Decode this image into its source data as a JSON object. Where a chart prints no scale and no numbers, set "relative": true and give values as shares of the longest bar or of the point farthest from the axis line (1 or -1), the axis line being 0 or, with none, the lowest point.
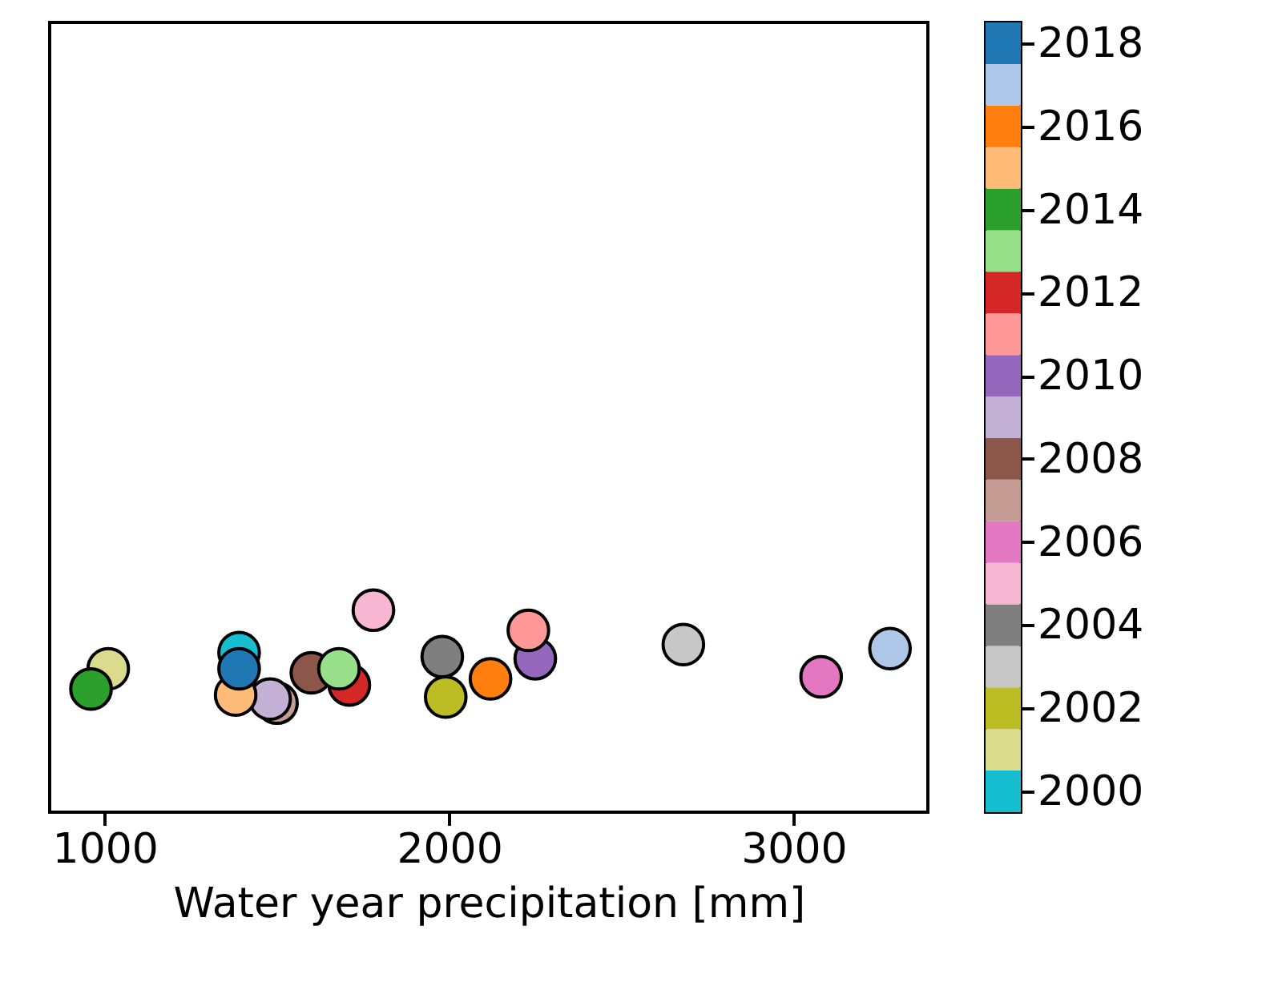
{
  "chart_data": {
    "type": "scatter",
    "xlabel": "Water year precipitation [mm]",
    "relative": true,
    "grid": false,
    "marker": "circle",
    "xlim": [
      840,
      3390
    ],
    "xticks": [
      {
        "value": 1000,
        "label": "1000"
      },
      {
        "value": 2000,
        "label": "2000"
      },
      {
        "value": 3000,
        "label": "3000"
      }
    ],
    "x": [
      1390,
      1010,
      1990,
      2680,
      1980,
      1780,
      3080,
      1500,
      1600,
      1480,
      2250,
      2230,
      1710,
      1680,
      960,
      1380,
      2120,
      3280,
      1390
    ],
    "values": [
      0.79,
      0.71,
      0.57,
      0.83,
      0.77,
      1,
      0.67,
      0.54,
      0.69,
      0.56,
      0.76,
      0.9,
      0.63,
      0.71,
      0.61,
      0.58,
      0.66,
      0.81,
      0.71
    ],
    "cvalues": [
      2000,
      2001,
      2002,
      2003,
      2004,
      2005,
      2006,
      2007,
      2008,
      2009,
      2010,
      2011,
      2012,
      2013,
      2014,
      2015,
      2016,
      2017,
      2018
    ],
    "colors": [
      "#17becf",
      "#dbdb8d",
      "#bcbd22",
      "#c7c7c7",
      "#7f7f7f",
      "#f7b6d2",
      "#e377c2",
      "#c49c94",
      "#8c564b",
      "#c5b0d5",
      "#9467bd",
      "#ff9896",
      "#d62728",
      "#98df8a",
      "#2ca02c",
      "#ffbb78",
      "#ff7f0e",
      "#aec7e8",
      "#1f77b4"
    ],
    "clim": [
      1999.5,
      2018.5
    ],
    "cticks": [
      2000,
      2002,
      2004,
      2006,
      2008,
      2010,
      2012,
      2014,
      2016,
      2018
    ]
  }
}
